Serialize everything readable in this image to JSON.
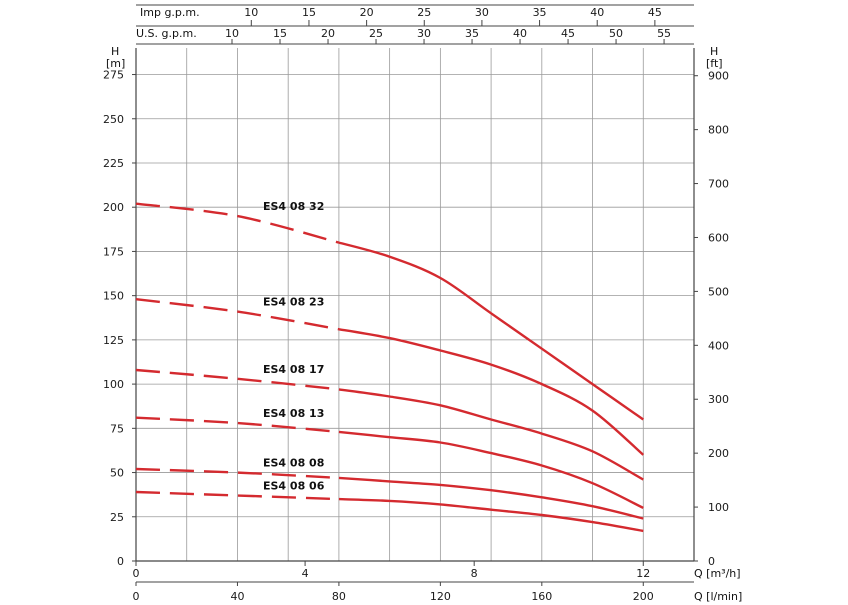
{
  "chart_data": {
    "type": "line",
    "title": "",
    "colors": {
      "curve": "#d42a2f",
      "grid": "#9a9a9a",
      "axis": "#444444"
    },
    "y_left": {
      "label_top": "H",
      "label_unit": "[m]",
      "ticks": [
        0,
        25,
        50,
        75,
        100,
        125,
        150,
        175,
        200,
        225,
        250,
        275
      ],
      "range": [
        0,
        290
      ]
    },
    "y_right": {
      "label_top": "H",
      "label_unit": "[ft]",
      "ticks": [
        0,
        100,
        200,
        300,
        400,
        500,
        600,
        700,
        800,
        900
      ],
      "range": [
        0,
        951.4
      ]
    },
    "x_m3h": {
      "label": "Q [m³/h]",
      "ticks": [
        0,
        4,
        8,
        12
      ],
      "range": [
        0,
        13.2
      ]
    },
    "x_lmin": {
      "label": "Q [l/min]",
      "ticks": [
        0,
        40,
        80,
        120,
        160,
        200
      ],
      "range": [
        0,
        220
      ]
    },
    "x_imp": {
      "label": "Imp g.p.m.",
      "ticks": [
        10,
        15,
        20,
        25,
        30,
        35,
        40,
        45
      ]
    },
    "x_us": {
      "label": "U.S. g.p.m.",
      "ticks": [
        10,
        15,
        20,
        25,
        30,
        35,
        40,
        45,
        50,
        55
      ]
    },
    "dashed_until_lmin": 80,
    "series": [
      {
        "name": "ES4 08 32",
        "x_lmin": [
          0,
          40,
          80,
          100,
          120,
          140,
          160,
          180,
          200
        ],
        "values": [
          202,
          195,
          180,
          172,
          160,
          140,
          120,
          100,
          80
        ]
      },
      {
        "name": "ES4 08 23",
        "x_lmin": [
          0,
          40,
          80,
          100,
          120,
          140,
          160,
          180,
          200
        ],
        "values": [
          148,
          141,
          131,
          126,
          119,
          111,
          100,
          85,
          60
        ]
      },
      {
        "name": "ES4 08 17",
        "x_lmin": [
          0,
          40,
          80,
          100,
          120,
          140,
          160,
          180,
          200
        ],
        "values": [
          108,
          103,
          97,
          93,
          88,
          80,
          72,
          62,
          46
        ]
      },
      {
        "name": "ES4 08 13",
        "x_lmin": [
          0,
          40,
          80,
          100,
          120,
          140,
          160,
          180,
          200
        ],
        "values": [
          81,
          78,
          73,
          70,
          67,
          61,
          54,
          44,
          30
        ]
      },
      {
        "name": "ES4 08 08",
        "x_lmin": [
          0,
          40,
          80,
          100,
          120,
          140,
          160,
          180,
          200
        ],
        "values": [
          52,
          50,
          47,
          45,
          43,
          40,
          36,
          31,
          24
        ]
      },
      {
        "name": "ES4 08 06",
        "x_lmin": [
          0,
          40,
          80,
          100,
          120,
          140,
          160,
          180,
          200
        ],
        "values": [
          39,
          37,
          35,
          34,
          32,
          29,
          26,
          22,
          17
        ]
      }
    ]
  }
}
